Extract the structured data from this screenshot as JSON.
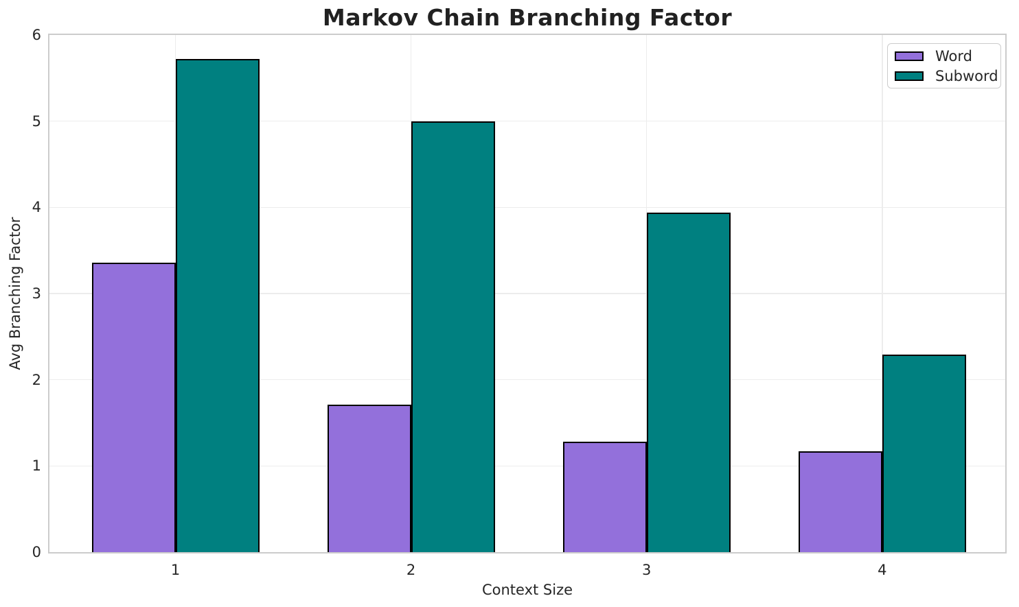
{
  "chart_data": {
    "type": "bar",
    "title": "Markov Chain Branching Factor",
    "xlabel": "Context Size",
    "ylabel": "Avg Branching Factor",
    "categories": [
      "1",
      "2",
      "3",
      "4"
    ],
    "series": [
      {
        "name": "Word",
        "color": "#9370DB",
        "values": [
          3.36,
          1.71,
          1.28,
          1.17
        ]
      },
      {
        "name": "Subword",
        "color": "#008080",
        "values": [
          5.72,
          5.0,
          3.94,
          2.29
        ]
      }
    ],
    "ylim": [
      0,
      6
    ],
    "yticks": [
      0,
      1,
      2,
      3,
      4,
      5,
      6
    ],
    "grid": true,
    "grid_color": "#ececec",
    "legend_position": "upper-right",
    "bar_edge_color": "#000000",
    "spine_color": "#cccccc",
    "background_color": "#ffffff",
    "text_color": "#262626"
  }
}
